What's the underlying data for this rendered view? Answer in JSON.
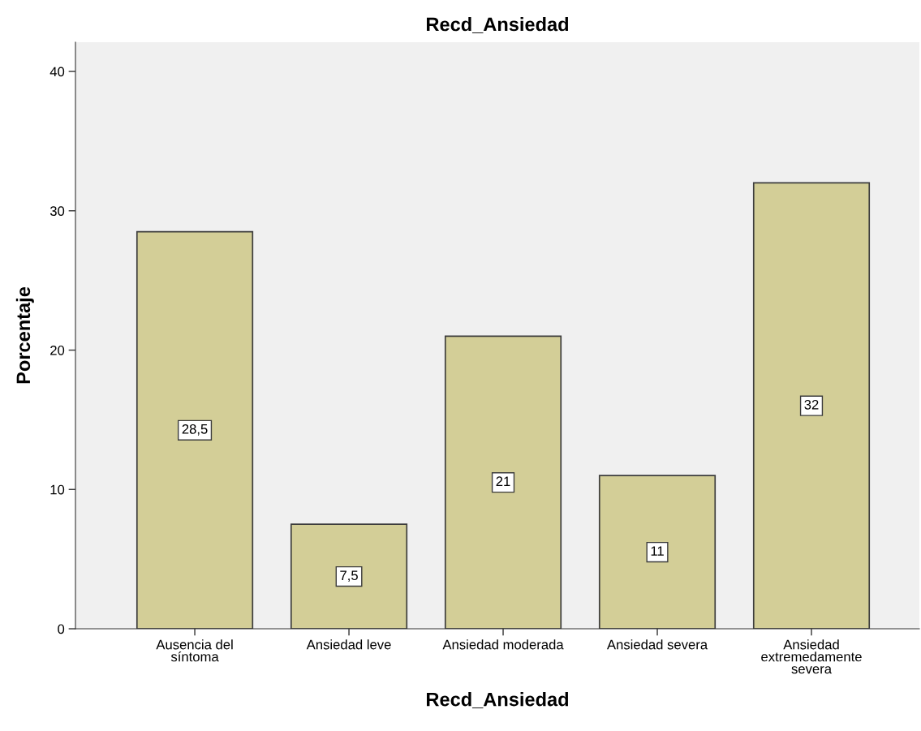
{
  "chart_data": {
    "type": "bar",
    "title": "Recd_Ansiedad",
    "xlabel": "Recd_Ansiedad",
    "ylabel": "Porcentaje",
    "categories": [
      "Ausencia del\nsíntoma",
      "Ansiedad leve",
      "Ansiedad moderada",
      "Ansiedad severa",
      "Ansiedad\nextremedamente\nsevera"
    ],
    "values": [
      28.5,
      7.5,
      21,
      11,
      32
    ],
    "value_labels": [
      "28,5",
      "7,5",
      "21",
      "11",
      "32"
    ],
    "color": "#d3ce97",
    "ylim": [
      0,
      42.1
    ],
    "yticks": [
      0,
      10,
      20,
      30,
      40
    ],
    "grid": false,
    "legend": false
  }
}
